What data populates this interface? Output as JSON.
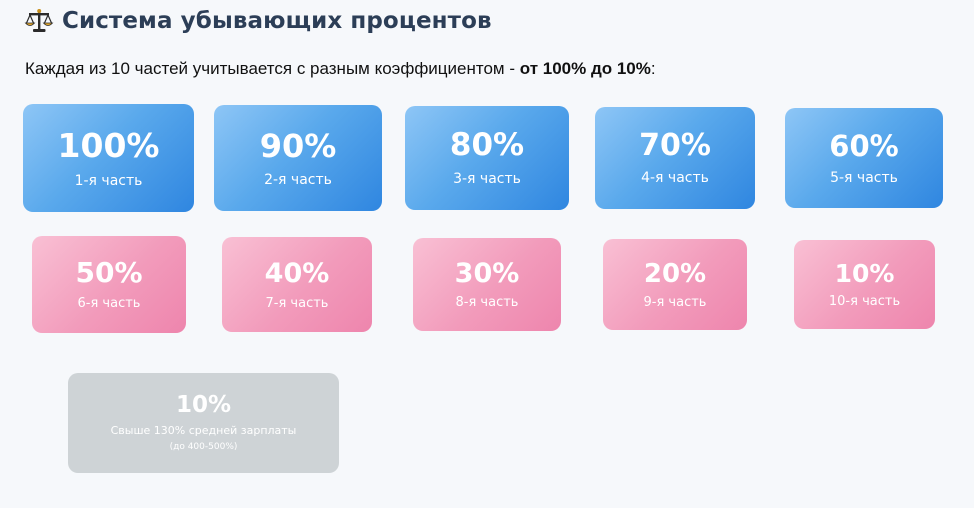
{
  "header": {
    "title": "Система убывающих процентов",
    "icon": "scales-icon"
  },
  "intro": {
    "prefix": "Каждая из 10 частей учитывается с разным коэффициентом - ",
    "highlight": "от 100% до 10%",
    "suffix": ":"
  },
  "parts": [
    {
      "percent": "100%",
      "label": "1-я часть"
    },
    {
      "percent": "90%",
      "label": "2-я часть"
    },
    {
      "percent": "80%",
      "label": "3-я часть"
    },
    {
      "percent": "70%",
      "label": "4-я часть"
    },
    {
      "percent": "60%",
      "label": "5-я часть"
    },
    {
      "percent": "50%",
      "label": "6-я часть"
    },
    {
      "percent": "40%",
      "label": "7-я часть"
    },
    {
      "percent": "30%",
      "label": "8-я часть"
    },
    {
      "percent": "20%",
      "label": "9-я часть"
    },
    {
      "percent": "10%",
      "label": "10-я часть"
    }
  ],
  "extra": {
    "percent": "10%",
    "label": "Свыше 130% средней зарплаты",
    "note": "(до 400-500%)"
  },
  "colors": {
    "blue_start": "#8ec6f6",
    "blue_end": "#2f86e0",
    "pink_start": "#f9c0d4",
    "pink_end": "#ee85ad",
    "gray": "#ced3d6",
    "title": "#2c3e57"
  }
}
